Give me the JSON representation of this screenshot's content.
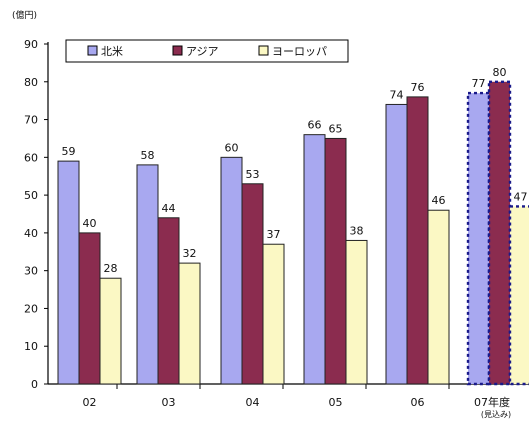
{
  "chart_data": {
    "type": "bar",
    "unit_label": "(億円)",
    "categories": [
      "02",
      "03",
      "04",
      "05",
      "06",
      "07年度"
    ],
    "category_note": "(見込み)",
    "ylim": [
      0,
      90
    ],
    "yticks": [
      0,
      10,
      20,
      30,
      40,
      50,
      60,
      70,
      80,
      90
    ],
    "grid": false,
    "legend_position": "top",
    "projected_last_category": true,
    "series": [
      {
        "name": "北米",
        "color": "#a8a8f0",
        "values": [
          59,
          58,
          60,
          66,
          74,
          77
        ]
      },
      {
        "name": "アジア",
        "color": "#8b2c4f",
        "values": [
          40,
          44,
          53,
          65,
          76,
          80
        ]
      },
      {
        "name": "ヨーロッパ",
        "color": "#fbf8c4",
        "values": [
          28,
          32,
          37,
          38,
          46,
          47
        ]
      }
    ]
  }
}
